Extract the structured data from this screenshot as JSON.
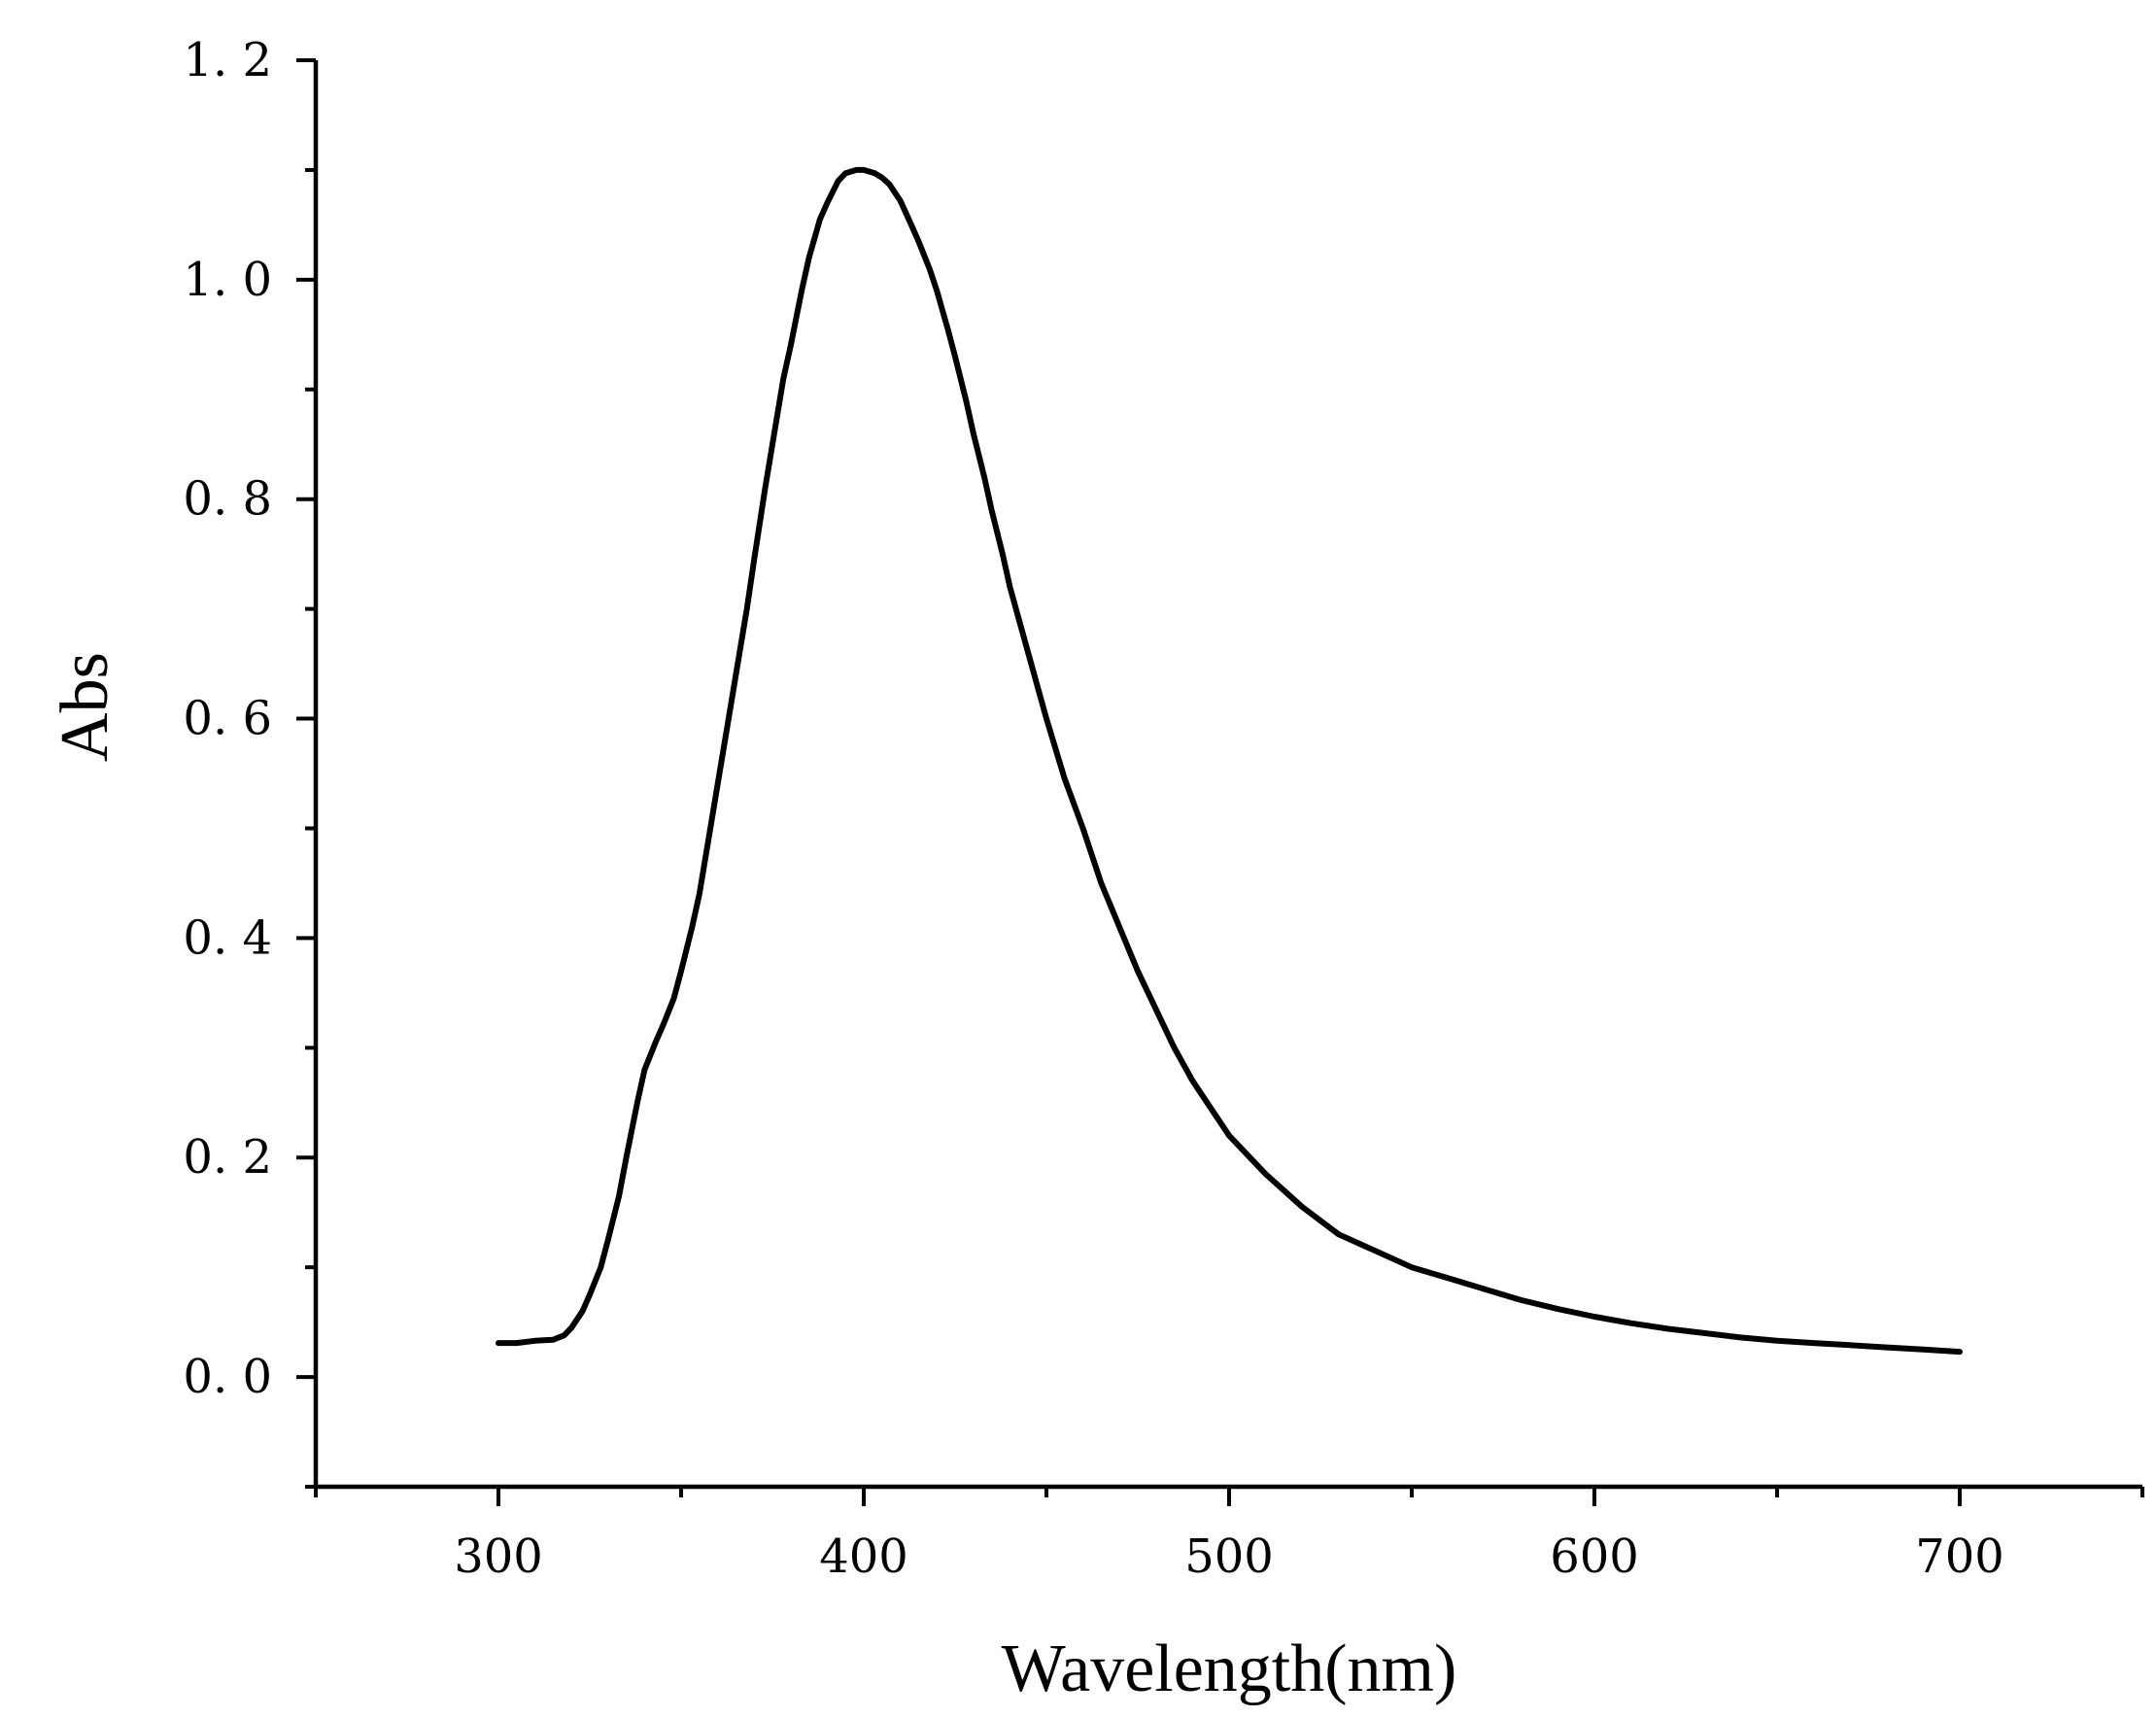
{
  "chart_data": {
    "type": "line",
    "title": "",
    "xlabel": "Wavelength(nm)",
    "ylabel": "Abs",
    "xlim": [
      250,
      750
    ],
    "ylim": [
      -0.1,
      1.2
    ],
    "x_ticks": [
      300,
      400,
      500,
      600,
      700
    ],
    "x_tick_labels": [
      "300",
      "400",
      "500",
      "600",
      "700"
    ],
    "x_minor_ticks": [
      250,
      350,
      450,
      550,
      650,
      750
    ],
    "y_ticks": [
      0.0,
      0.2,
      0.4,
      0.6,
      0.8,
      1.0,
      1.2
    ],
    "y_tick_labels": [
      "0. 0",
      "0. 2",
      "0. 4",
      "0. 6",
      "0. 8",
      "1. 0",
      "1. 2"
    ],
    "y_minor_ticks": [
      -0.1,
      0.1,
      0.3,
      0.5,
      0.7,
      0.9,
      1.1
    ],
    "grid": false,
    "legend": "none",
    "line_color": "#000000",
    "series": [
      {
        "x": [
          300,
          305,
          310,
          315,
          318,
          320,
          323,
          325,
          328,
          330,
          333,
          335,
          338,
          340,
          343,
          345,
          348,
          350,
          353,
          355,
          358,
          360,
          363,
          365,
          368,
          370,
          373,
          375,
          378,
          380,
          383,
          385,
          388,
          390,
          393,
          395,
          398,
          400,
          403,
          405,
          407,
          410,
          413,
          415,
          418,
          420,
          423,
          425,
          428,
          430,
          433,
          435,
          438,
          440,
          445,
          450,
          455,
          460,
          465,
          470,
          475,
          480,
          485,
          490,
          495,
          500,
          510,
          520,
          530,
          540,
          550,
          560,
          570,
          580,
          590,
          600,
          610,
          620,
          630,
          640,
          650,
          660,
          670,
          680,
          690,
          700
        ],
        "y": [
          0.031,
          0.031,
          0.033,
          0.034,
          0.038,
          0.045,
          0.06,
          0.075,
          0.1,
          0.125,
          0.165,
          0.2,
          0.25,
          0.28,
          0.305,
          0.32,
          0.345,
          0.37,
          0.41,
          0.44,
          0.5,
          0.54,
          0.6,
          0.64,
          0.7,
          0.745,
          0.81,
          0.85,
          0.91,
          0.94,
          0.99,
          1.02,
          1.055,
          1.07,
          1.09,
          1.097,
          1.1,
          1.1,
          1.097,
          1.093,
          1.087,
          1.072,
          1.05,
          1.035,
          1.01,
          0.99,
          0.955,
          0.93,
          0.89,
          0.86,
          0.82,
          0.79,
          0.75,
          0.72,
          0.66,
          0.6,
          0.545,
          0.5,
          0.45,
          0.41,
          0.37,
          0.335,
          0.3,
          0.27,
          0.245,
          0.22,
          0.185,
          0.155,
          0.13,
          0.115,
          0.1,
          0.09,
          0.08,
          0.07,
          0.062,
          0.055,
          0.049,
          0.044,
          0.04,
          0.036,
          0.033,
          0.031,
          0.029,
          0.027,
          0.025,
          0.023
        ]
      }
    ]
  }
}
